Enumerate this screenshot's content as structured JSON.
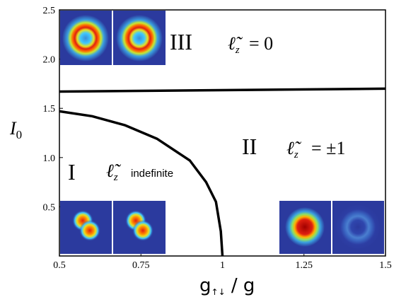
{
  "chart_data": {
    "type": "line",
    "xlabel": "g↑↓ / g",
    "ylabel": "I0",
    "xlim": [
      0.5,
      1.5
    ],
    "ylim": [
      0,
      2.5
    ],
    "xticks": [
      "0.5",
      "0.75",
      "1",
      "1.25",
      "1.5"
    ],
    "yticks": [
      "0.5",
      "1.0",
      "1.5",
      "2.0",
      "2.5"
    ],
    "series": [
      {
        "x": [
          0.5,
          1.5
        ],
        "y": [
          1.67,
          1.7
        ]
      },
      {
        "x": [
          0.5,
          0.6,
          0.7,
          0.8,
          0.9,
          0.95,
          0.98,
          0.995,
          1.0
        ],
        "y": [
          1.47,
          1.42,
          1.33,
          1.19,
          0.97,
          0.75,
          0.55,
          0.25,
          0.0
        ]
      }
    ],
    "regions": [
      {
        "label": "III",
        "lz": "0"
      },
      {
        "label": "II",
        "lz": "±1"
      },
      {
        "label": "I",
        "lz": "indefinite"
      }
    ],
    "insets": [
      {
        "name": "inset-ring-1",
        "kind": "ring"
      },
      {
        "name": "inset-ring-2",
        "kind": "ring"
      },
      {
        "name": "inset-blob-1",
        "kind": "double-blob"
      },
      {
        "name": "inset-blob-2",
        "kind": "double-blob"
      },
      {
        "name": "inset-disk",
        "kind": "disk"
      },
      {
        "name": "inset-faint-ring",
        "kind": "faint-ring"
      }
    ],
    "colors": {
      "inset_background": "#2b3a9e",
      "line": "#000000"
    }
  }
}
